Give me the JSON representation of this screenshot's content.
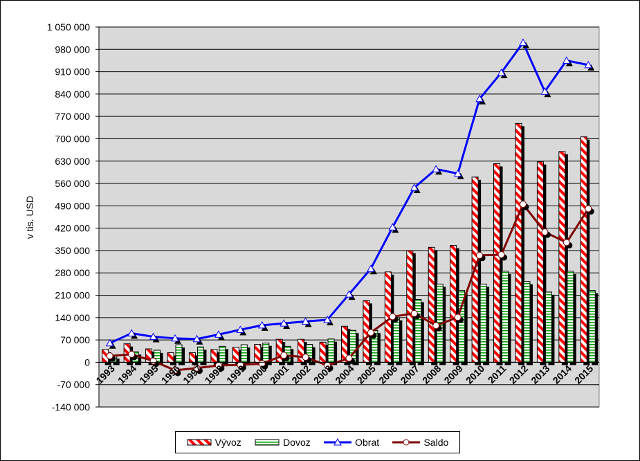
{
  "chart_data": {
    "type": "bar",
    "ylabel": "v tis. USD",
    "ylim": [
      -140000,
      1050000
    ],
    "yticks": [
      -140000,
      -70000,
      0,
      70000,
      140000,
      210000,
      280000,
      350000,
      420000,
      490000,
      560000,
      630000,
      700000,
      770000,
      840000,
      910000,
      980000,
      1050000
    ],
    "ytick_labels": [
      "-140 000",
      "-70 000",
      "0",
      "70 000",
      "140 000",
      "210 000",
      "280 000",
      "350 000",
      "420 000",
      "490 000",
      "560 000",
      "630 000",
      "700 000",
      "770 000",
      "840 000",
      "910 000",
      "980 000",
      "1 050 000"
    ],
    "categories": [
      "1993",
      "1994",
      "1995",
      "1996",
      "1997",
      "1998",
      "1999",
      "2000",
      "2001",
      "2002",
      "2003",
      "2004",
      "2005",
      "2006",
      "2007",
      "2008",
      "2009",
      "2010",
      "2011",
      "2012",
      "2013",
      "2014",
      "2015"
    ],
    "series": [
      {
        "name": "Vývoz",
        "kind": "bar",
        "color": "#ff0000",
        "values": [
          40000,
          58000,
          42000,
          30000,
          30000,
          40000,
          47000,
          56000,
          72000,
          72000,
          63000,
          113000,
          193000,
          283000,
          350000,
          360000,
          366000,
          580000,
          622000,
          748000,
          628000,
          660000,
          706000
        ]
      },
      {
        "name": "Dovoz",
        "kind": "bar",
        "color": "#00aa00",
        "values": [
          20000,
          33000,
          38000,
          55000,
          48000,
          50000,
          55000,
          60000,
          50000,
          56000,
          73000,
          100000,
          100000,
          140000,
          197000,
          245000,
          225000,
          245000,
          285000,
          253000,
          220000,
          285000,
          225000
        ]
      },
      {
        "name": "Obrat",
        "kind": "line",
        "color": "#0000ff",
        "values": [
          60000,
          91000,
          80000,
          75000,
          73000,
          87000,
          102000,
          116000,
          122000,
          128000,
          133000,
          213000,
          293000,
          423000,
          547000,
          605000,
          591000,
          825000,
          907000,
          1001000,
          848000,
          945000,
          931000
        ]
      },
      {
        "name": "Saldo",
        "kind": "line",
        "color": "#800000",
        "values": [
          20000,
          25000,
          4000,
          -25000,
          -18000,
          -10000,
          -8000,
          -4000,
          22000,
          16000,
          -10000,
          13000,
          93000,
          143000,
          153000,
          115000,
          141000,
          335000,
          337000,
          495000,
          408000,
          375000,
          481000
        ]
      }
    ],
    "legend_position": "bottom",
    "grid": true
  },
  "legend": {
    "items": [
      {
        "label": "Vývoz"
      },
      {
        "label": "Dovoz"
      },
      {
        "label": "Obrat"
      },
      {
        "label": "Saldo"
      }
    ]
  }
}
